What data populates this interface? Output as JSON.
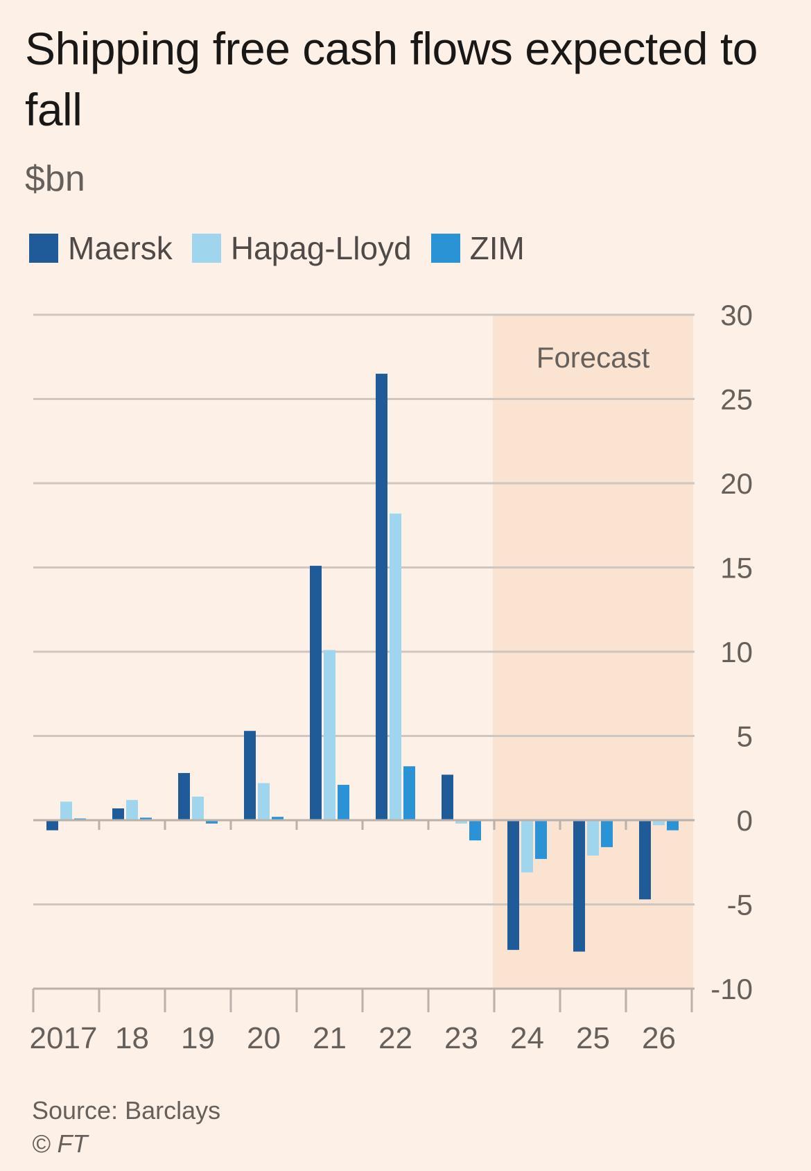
{
  "title": "Shipping free cash flows expected to fall",
  "subtitle": "$bn",
  "source": "Source: Barclays",
  "credit": "© FT",
  "chart_data": {
    "type": "bar",
    "categories": [
      "2017",
      "18",
      "19",
      "20",
      "21",
      "22",
      "23",
      "24",
      "25",
      "26"
    ],
    "series": [
      {
        "name": "Maersk",
        "color": "#1f5b99",
        "values": [
          -0.6,
          0.7,
          2.8,
          5.3,
          15.1,
          26.5,
          2.7,
          -7.7,
          -7.8,
          -4.7
        ]
      },
      {
        "name": "Hapag-Lloyd",
        "color": "#9fd6ee",
        "values": [
          1.1,
          1.2,
          1.4,
          2.2,
          10.1,
          18.2,
          -0.2,
          -3.1,
          -2.1,
          -0.3
        ]
      },
      {
        "name": "ZIM",
        "color": "#2a93d5",
        "values": [
          0.1,
          0.15,
          -0.2,
          0.2,
          2.1,
          3.2,
          -1.2,
          -2.3,
          -1.6,
          -0.6
        ]
      }
    ],
    "ylim": [
      -10,
      30
    ],
    "yticks": [
      30,
      25,
      20,
      15,
      10,
      5,
      0,
      -5,
      -10
    ],
    "ytick_labels": [
      "30",
      "25",
      "20",
      "15",
      "10",
      "5",
      "0",
      "-5",
      "-10"
    ],
    "y_axis_side": "right",
    "grid": true,
    "legend_position": "top-left",
    "annotation": {
      "label": "Forecast",
      "from_category": "24",
      "to_category": "26",
      "color": "#fbe3d2"
    }
  }
}
